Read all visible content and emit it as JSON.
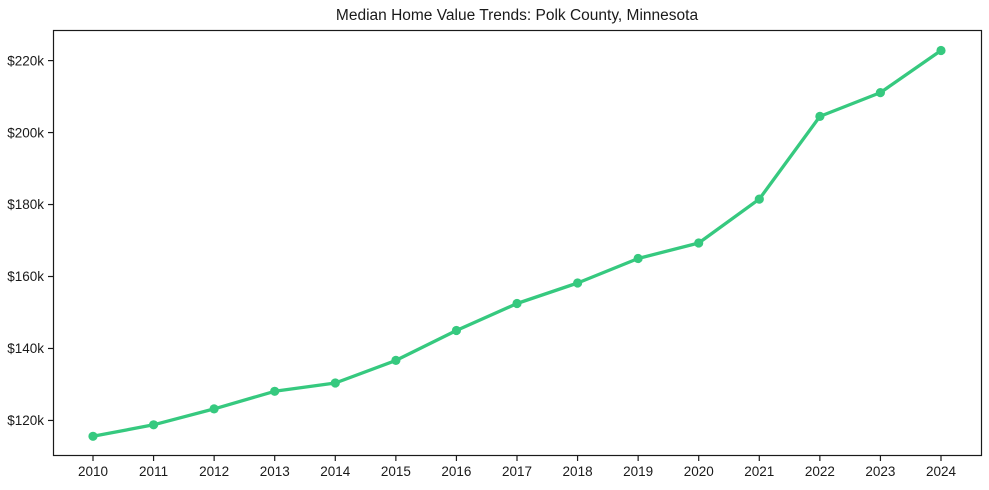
{
  "chart_data": {
    "type": "line",
    "title": "Median Home Value Trends: Polk County, Minnesota",
    "xlabel": "",
    "ylabel": "",
    "x": [
      2010,
      2011,
      2012,
      2013,
      2014,
      2015,
      2016,
      2017,
      2018,
      2019,
      2020,
      2021,
      2022,
      2023,
      2024
    ],
    "xtick_labels": [
      "2010",
      "2011",
      "2012",
      "2013",
      "2014",
      "2015",
      "2016",
      "2017",
      "2018",
      "2019",
      "2020",
      "2021",
      "2022",
      "2023",
      "2024"
    ],
    "values": [
      115600,
      118800,
      123200,
      128100,
      130400,
      136700,
      145000,
      152500,
      158200,
      165000,
      169300,
      181500,
      204500,
      211100,
      222800
    ],
    "ylim": [
      110400,
      228500
    ],
    "yticks": [
      120000,
      140000,
      160000,
      180000,
      200000,
      220000
    ],
    "ytick_labels": [
      "$120k",
      "$140k",
      "$160k",
      "$180k",
      "$200k",
      "$220k"
    ],
    "grid": false,
    "legend": false,
    "marker": "circle",
    "line_color": "#36c97f",
    "spine_color": "#1a1a1a",
    "text_color": "#1a1a1a"
  }
}
